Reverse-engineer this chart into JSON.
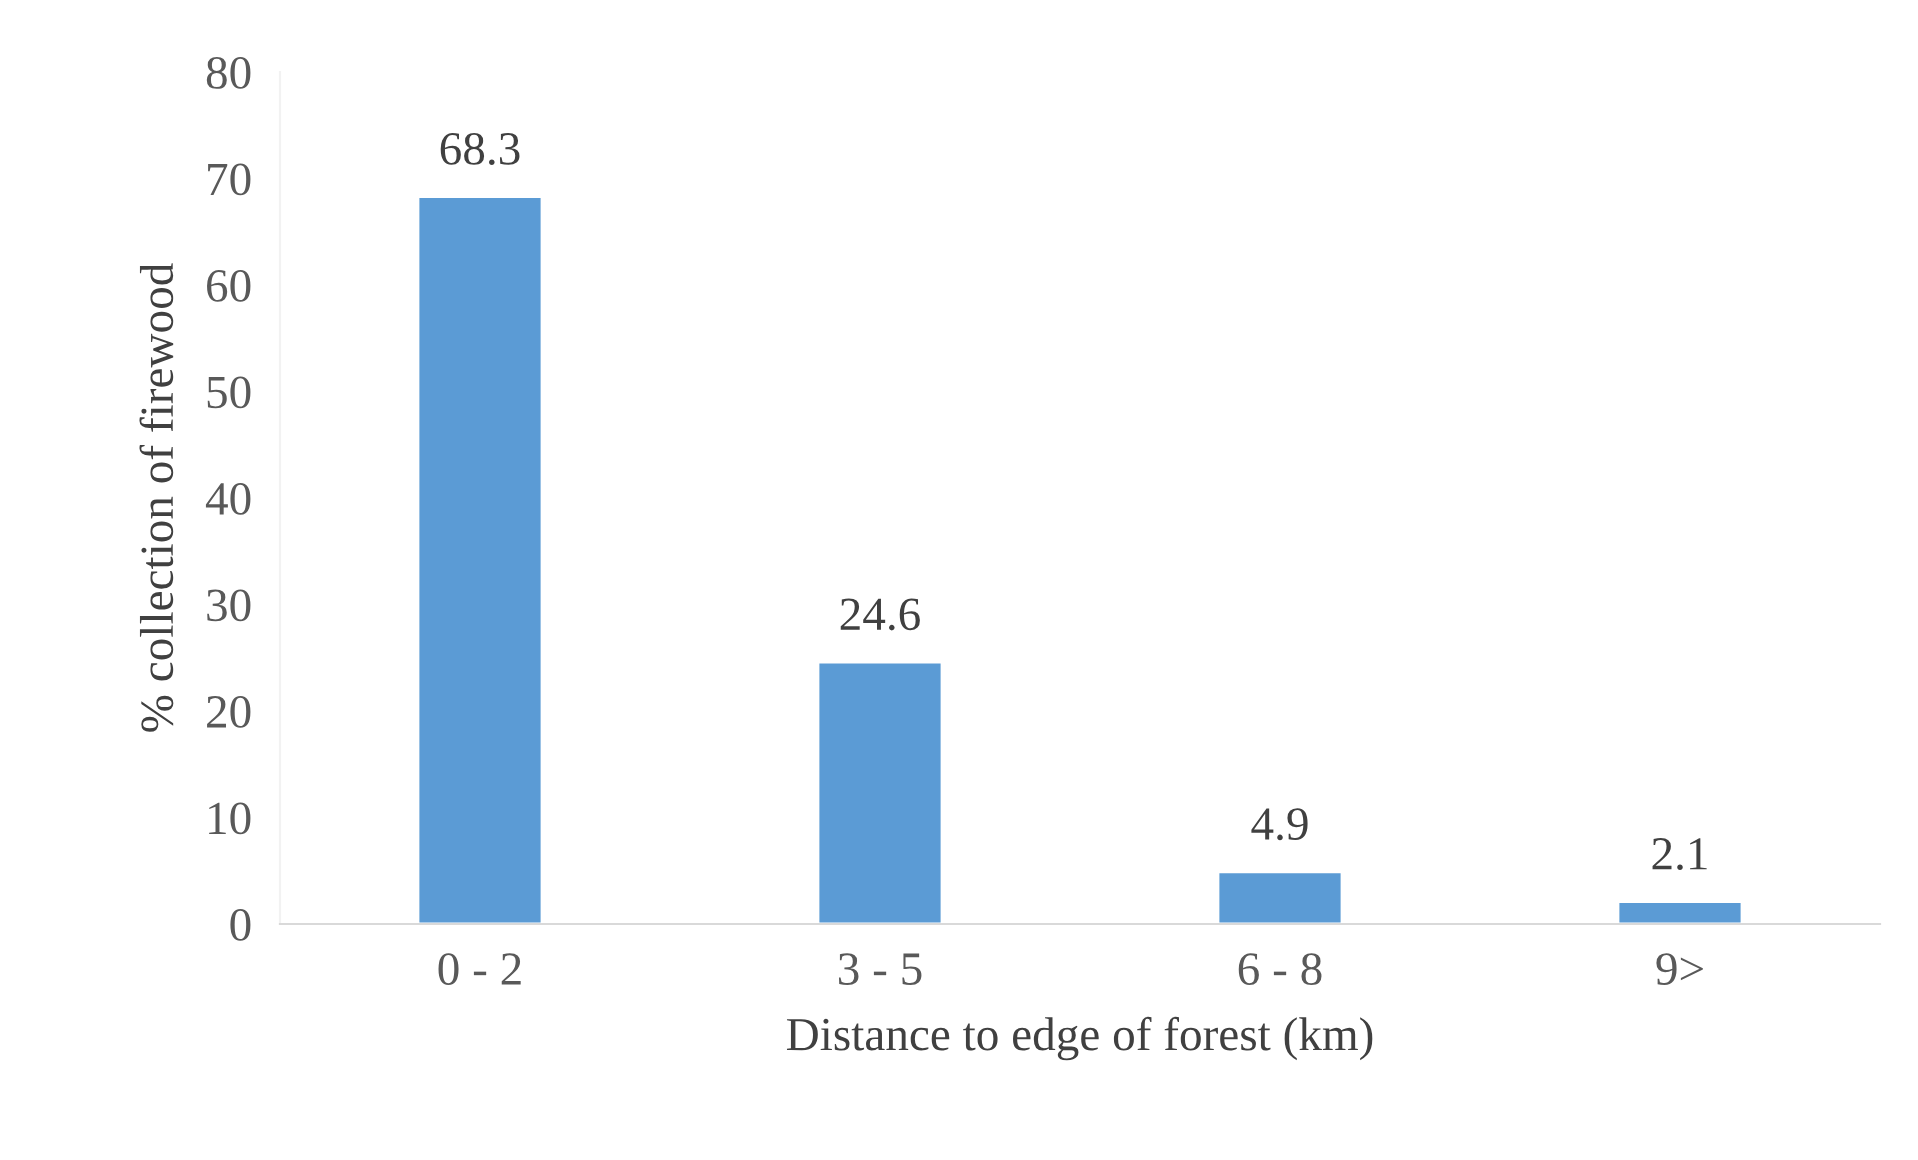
{
  "chart_data": {
    "type": "bar",
    "xlabel": "Distance to edge of forest (km)",
    "ylabel": "% collection of firewood",
    "categories": [
      "0 - 2",
      "3 - 5",
      "6 - 8",
      "9>"
    ],
    "values": [
      68.3,
      24.6,
      4.9,
      2.1
    ],
    "color": "#5b9bd5",
    "ylim": [
      0,
      80
    ],
    "yticks": [
      0,
      10,
      20,
      30,
      40,
      50,
      60,
      70,
      80
    ],
    "grid": false,
    "data_labels": true
  }
}
